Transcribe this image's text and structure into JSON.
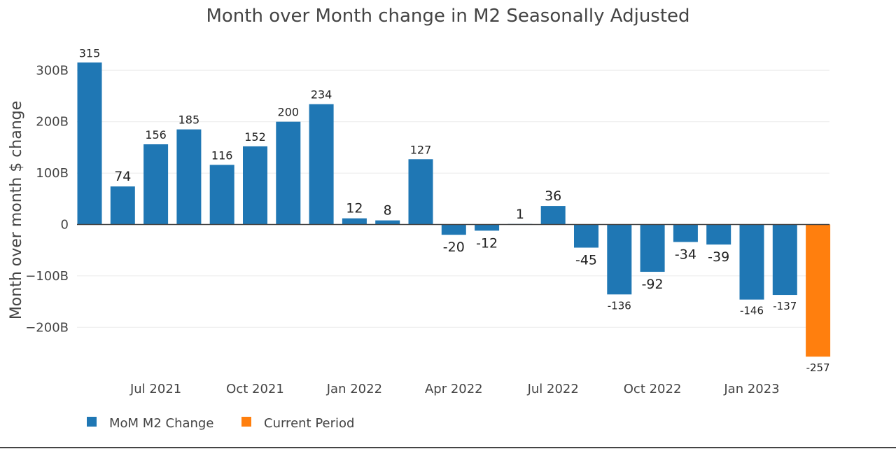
{
  "chart_data": {
    "type": "bar",
    "title": "Month over Month change in M2 Seasonally Adjusted",
    "xlabel": "",
    "ylabel": "Month over month $ change",
    "ylim": [
      -257,
      315
    ],
    "y_ticks": [
      {
        "value": 300,
        "label": "300B"
      },
      {
        "value": 200,
        "label": "200B"
      },
      {
        "value": 100,
        "label": "100B"
      },
      {
        "value": 0,
        "label": "0"
      },
      {
        "value": -100,
        "label": "−100B"
      },
      {
        "value": -200,
        "label": "−200B"
      }
    ],
    "x_ticks": [
      {
        "index": 2,
        "label": "Jul 2021"
      },
      {
        "index": 5,
        "label": "Oct 2021"
      },
      {
        "index": 8,
        "label": "Jan 2022"
      },
      {
        "index": 11,
        "label": "Apr 2022"
      },
      {
        "index": 14,
        "label": "Jul 2022"
      },
      {
        "index": 17,
        "label": "Oct 2022"
      },
      {
        "index": 20,
        "label": "Jan 2023"
      }
    ],
    "series": [
      {
        "name": "MoM M2 Change",
        "color": "#1f77b4",
        "values": [
          315,
          74,
          156,
          185,
          116,
          152,
          200,
          234,
          12,
          8,
          127,
          -20,
          -12,
          1,
          36,
          -45,
          -136,
          -92,
          -34,
          -39,
          -146,
          -137
        ],
        "labels": [
          "315",
          "74",
          "156",
          "185",
          "116",
          "152",
          "200",
          "234",
          "12",
          "8",
          "127",
          "-20",
          "-12",
          "1",
          "36",
          "-45",
          "-136",
          "-92",
          "-34",
          "-39",
          "-146",
          "-137"
        ]
      },
      {
        "name": "Current Period",
        "color": "#ff7f0e",
        "index": 22,
        "values": [
          -257
        ],
        "labels": [
          "-257"
        ]
      }
    ],
    "grid": true,
    "legend_position": "bottom-left"
  }
}
